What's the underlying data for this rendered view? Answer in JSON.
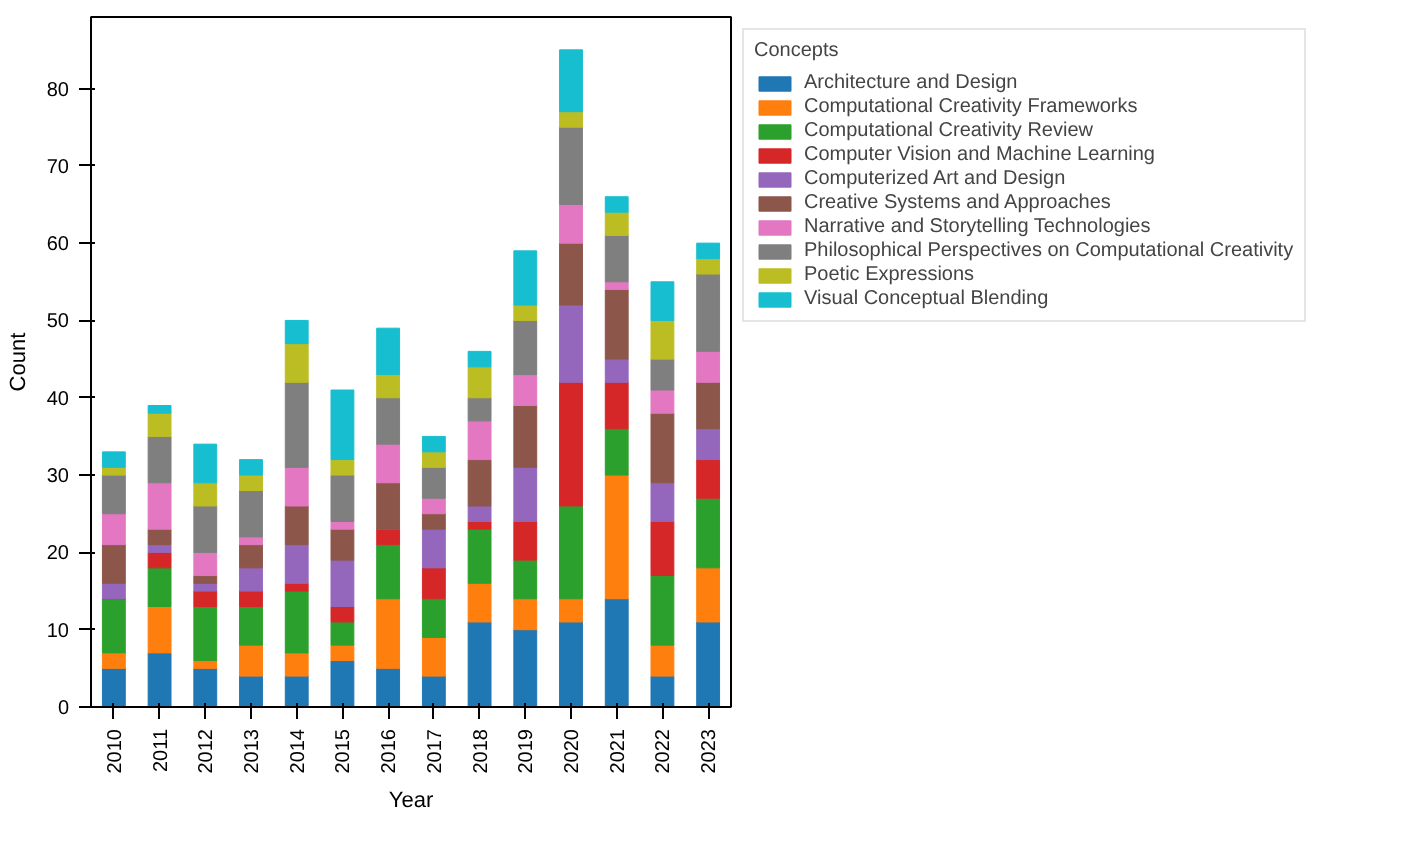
{
  "chart_data": {
    "type": "bar",
    "stacked": true,
    "xlabel": "Year",
    "ylabel": "Count",
    "legend_title": "Concepts",
    "legend": "top right",
    "grid": false,
    "categories": [
      "2010",
      "2011",
      "2012",
      "2013",
      "2014",
      "2015",
      "2016",
      "2017",
      "2018",
      "2019",
      "2020",
      "2021",
      "2022",
      "2023"
    ],
    "ylim": [
      0,
      89.25
    ],
    "yticks": [
      0,
      10,
      20,
      30,
      40,
      50,
      60,
      70,
      80
    ],
    "series": [
      {
        "name": "Architecture and Design",
        "color": "#1f77b4",
        "values": [
          5,
          7,
          5,
          4,
          4,
          6,
          5,
          4,
          11,
          10,
          11,
          14,
          4,
          11
        ]
      },
      {
        "name": "Computational Creativity Frameworks",
        "color": "#ff7f0e",
        "values": [
          2,
          6,
          1,
          4,
          3,
          2,
          9,
          5,
          5,
          4,
          3,
          16,
          4,
          7
        ]
      },
      {
        "name": "Computational Creativity Review",
        "color": "#2ca02c",
        "values": [
          7,
          5,
          7,
          5,
          8,
          3,
          7,
          5,
          7,
          5,
          12,
          6,
          9,
          9
        ]
      },
      {
        "name": "Computer Vision and Machine Learning",
        "color": "#d62728",
        "values": [
          0,
          2,
          2,
          2,
          1,
          2,
          2,
          4,
          1,
          5,
          16,
          6,
          7,
          5
        ]
      },
      {
        "name": "Computerized Art and Design",
        "color": "#9467bd",
        "values": [
          2,
          1,
          1,
          3,
          5,
          6,
          0,
          5,
          2,
          7,
          10,
          3,
          5,
          4
        ]
      },
      {
        "name": "Creative Systems and Approaches",
        "color": "#8c564b",
        "values": [
          5,
          2,
          1,
          3,
          5,
          4,
          6,
          2,
          6,
          8,
          8,
          9,
          9,
          6
        ]
      },
      {
        "name": "Narrative and Storytelling Technologies",
        "color": "#e377c2",
        "values": [
          4,
          6,
          3,
          1,
          5,
          1,
          5,
          2,
          5,
          4,
          5,
          1,
          3,
          4
        ]
      },
      {
        "name": "Philosophical Perspectives on Computational Creativity",
        "color": "#7f7f7f",
        "values": [
          5,
          6,
          6,
          6,
          11,
          6,
          6,
          4,
          3,
          7,
          10,
          6,
          4,
          10
        ]
      },
      {
        "name": "Poetic Expressions",
        "color": "#bcbd22",
        "values": [
          1,
          3,
          3,
          2,
          5,
          2,
          3,
          2,
          4,
          2,
          2,
          3,
          5,
          2
        ]
      },
      {
        "name": "Visual Conceptual Blending",
        "color": "#17becf",
        "values": [
          2,
          1,
          5,
          2,
          3,
          9,
          6,
          2,
          2,
          7,
          8,
          2,
          5,
          2
        ]
      }
    ]
  }
}
